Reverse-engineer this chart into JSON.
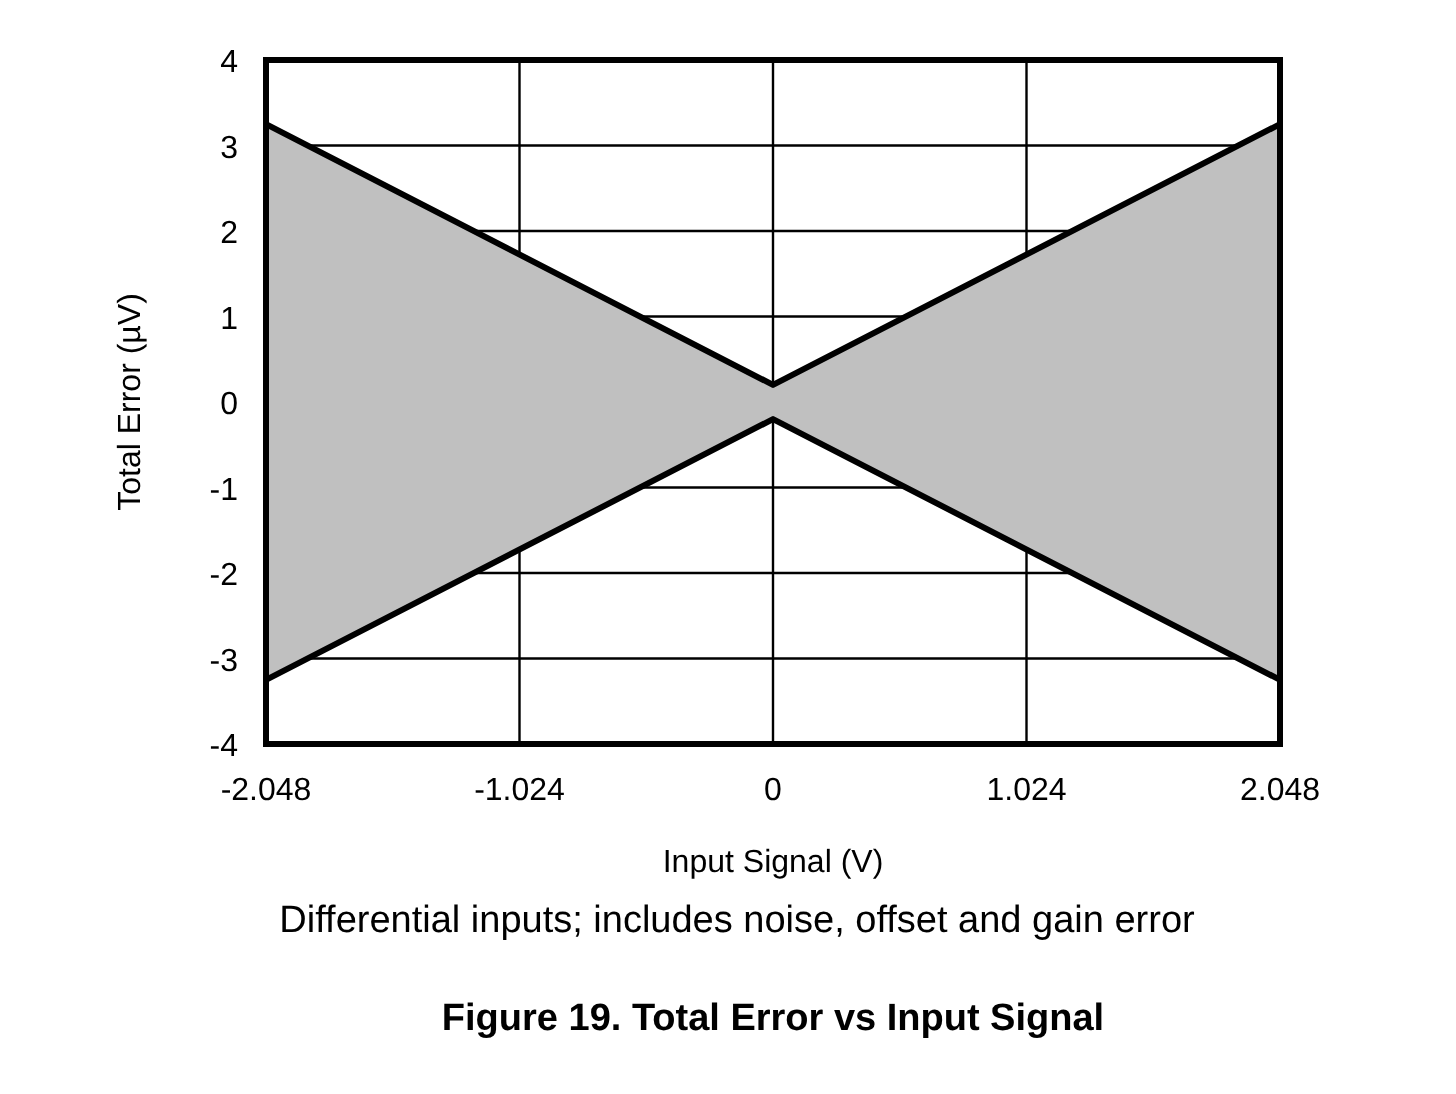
{
  "chart_data": {
    "type": "line",
    "title": "Figure 19. Total Error vs Input Signal",
    "xlabel": "Input Signal (V)",
    "ylabel": "Total Error (µV)",
    "annotations": [
      "Differential inputs; includes noise, offset and gain error"
    ],
    "x": [
      -2.048,
      0,
      2.048
    ],
    "series": [
      {
        "type": "area",
        "color": "#c0c0c0",
        "values": [
          null,
          null,
          null
        ],
        "lower": [
          -3.25,
          -0.2,
          -3.25
        ],
        "upper": [
          3.25,
          0.2,
          3.25
        ]
      },
      {
        "color": "#000000",
        "values": [
          3.25,
          0.2,
          3.25
        ]
      },
      {
        "color": "#000000",
        "values": [
          -3.25,
          -0.2,
          -3.25
        ]
      }
    ],
    "xlim": [
      -2.048,
      2.048
    ],
    "xticks": [
      -2.048,
      -1.024,
      0,
      1.024,
      2.048
    ],
    "ylim": [
      -4,
      4
    ],
    "yticks": [
      -4,
      -3,
      -2,
      -1,
      0,
      1,
      2,
      3,
      4
    ],
    "grid": true,
    "marker": "none",
    "line_style": "solid"
  }
}
